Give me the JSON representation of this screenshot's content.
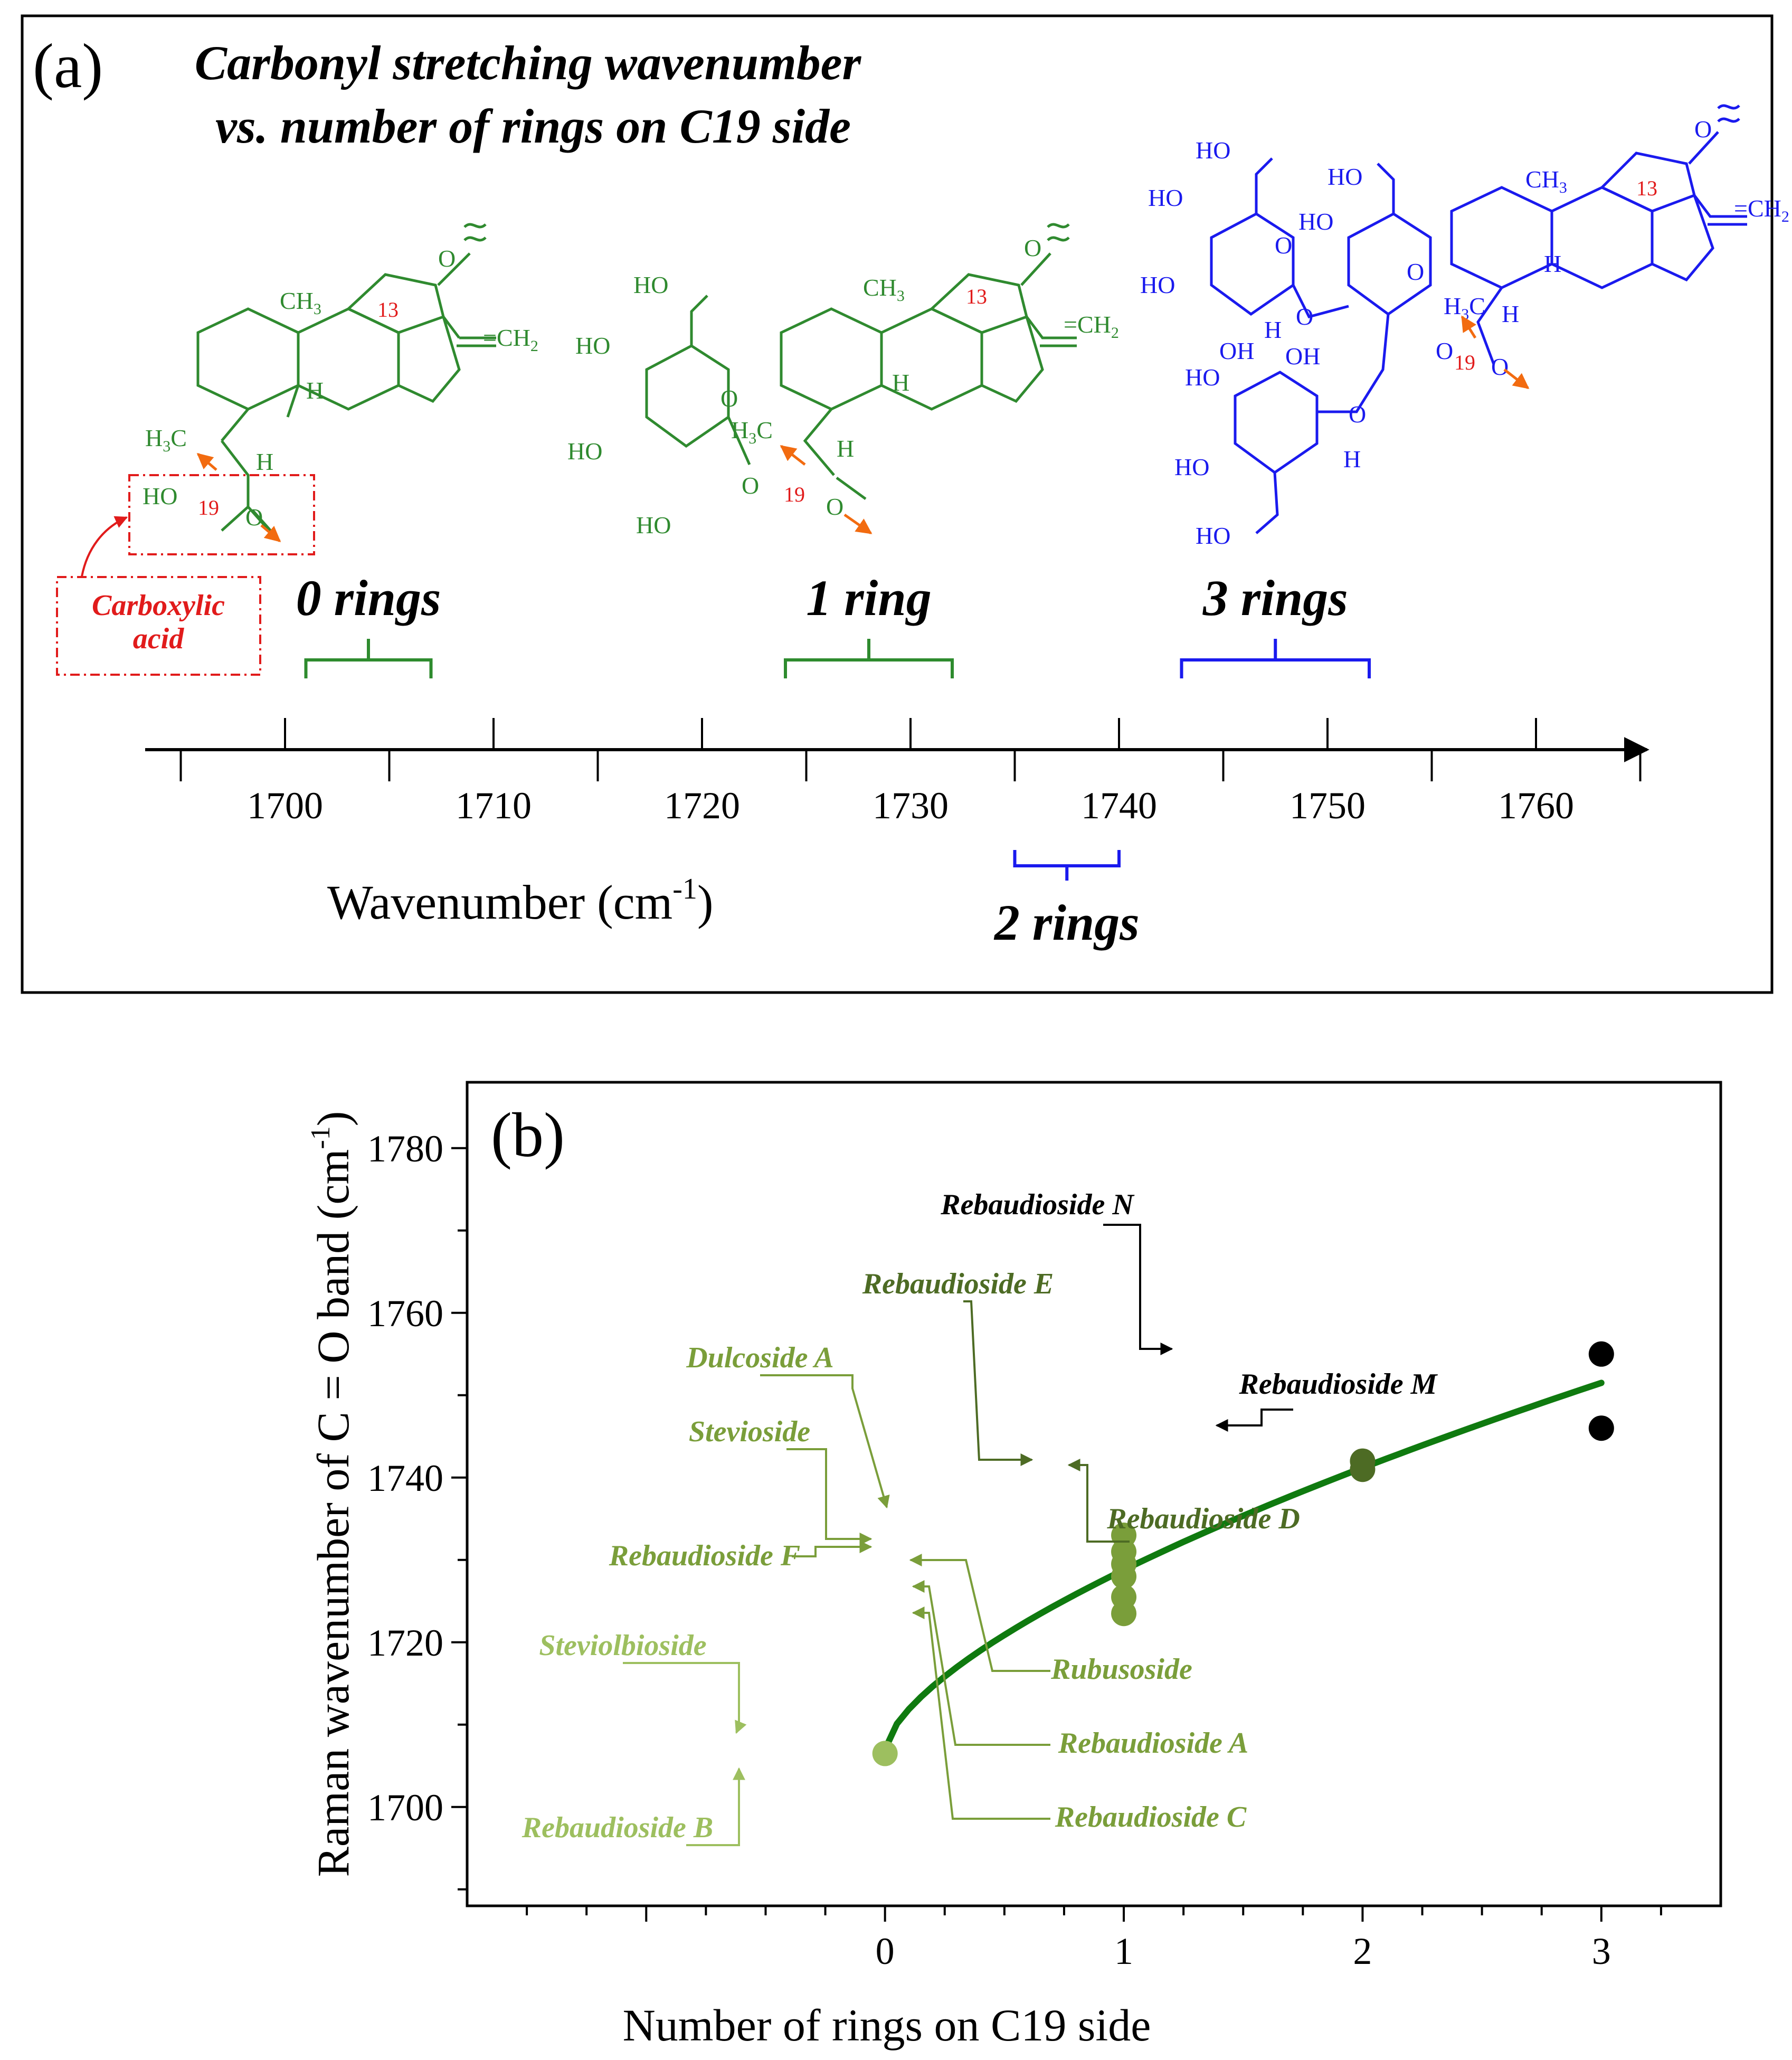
{
  "panel_a": {
    "label": "(a)",
    "title_line1": "Carbonyl stretching wavenumber",
    "title_line2": "vs. number of rings on C19 side",
    "axis": {
      "label_main": "Wavenumber (cm",
      "label_sup": "-1",
      "label_close": ")",
      "ticks": [
        1700,
        1710,
        1720,
        1730,
        1740,
        1750,
        1760
      ],
      "min": 1700,
      "max": 1760
    },
    "ranges": [
      {
        "label": "0 rings",
        "from": 1701,
        "to": 1707,
        "color": "#2e8b2e"
      },
      {
        "label": "1 ring",
        "from": 1724,
        "to": 1732,
        "color": "#2e8b2e"
      },
      {
        "label": "2 rings",
        "from": 1735,
        "to": 1740,
        "color": "#1a1aee"
      },
      {
        "label": "3 rings",
        "from": 1743,
        "to": 1752,
        "color": "#1a1aee"
      }
    ],
    "annotation_label_line1": "Carboxylic",
    "annotation_label_line2": "acid",
    "chem_labels": {
      "ch3": "CH",
      "ch3_sub": "3",
      "h3c": "H",
      "h3c_sub": "3",
      "h3c_c": "C",
      "ch2": "=CH",
      "ch2_sub": "2",
      "h": "H",
      "ho": "HO",
      "oh": "OH",
      "o": "O",
      "c13": "13",
      "c19": "19",
      "wave": "≈"
    }
  },
  "panel_b": {
    "label": "(b)",
    "colors": {
      "light": "#9dbf5f",
      "mid": "#7a9e3a",
      "dark": "#4d6b24",
      "black": "#000000",
      "curve": "#0f7a0f"
    },
    "chart_data": {
      "type": "scatter",
      "xlabel": "Number of rings on C19 side",
      "ylabel_main": "Raman wavenumber of C = O band (cm",
      "ylabel_sup": "-1",
      "ylabel_close": ")",
      "xlim": [
        -1.75,
        3.5
      ],
      "ylim": [
        1688,
        1788
      ],
      "xticks": [
        0,
        1,
        2,
        3
      ],
      "yticks": [
        1700,
        1720,
        1740,
        1760,
        1780
      ],
      "points": [
        {
          "name": "Steviolbioside",
          "x": 0,
          "y": 1706.5,
          "color": "light"
        },
        {
          "name": "Rebaudioside B",
          "x": 0,
          "y": 1706.5,
          "color": "light"
        },
        {
          "name": "Dulcoside A",
          "x": 1,
          "y": 1733,
          "color": "mid"
        },
        {
          "name": "Stevioside",
          "x": 1,
          "y": 1731,
          "color": "mid"
        },
        {
          "name": "Rebaudioside F",
          "x": 1,
          "y": 1729.5,
          "color": "mid"
        },
        {
          "name": "Rubusoside",
          "x": 1,
          "y": 1728,
          "color": "mid"
        },
        {
          "name": "Rebaudioside A",
          "x": 1,
          "y": 1725.5,
          "color": "mid"
        },
        {
          "name": "Rebaudioside C",
          "x": 1,
          "y": 1723.5,
          "color": "mid"
        },
        {
          "name": "Rebaudioside E",
          "x": 2,
          "y": 1742,
          "color": "dark"
        },
        {
          "name": "Rebaudioside D",
          "x": 2,
          "y": 1741,
          "color": "dark"
        },
        {
          "name": "Rebaudioside N",
          "x": 3,
          "y": 1755,
          "color": "black"
        },
        {
          "name": "Rebaudioside M",
          "x": 3,
          "y": 1746,
          "color": "black"
        }
      ],
      "fit_curve": {
        "x0": 0,
        "y0": 1707,
        "x1": 3,
        "y1": 1751.5,
        "exponent": 0.65
      }
    }
  }
}
